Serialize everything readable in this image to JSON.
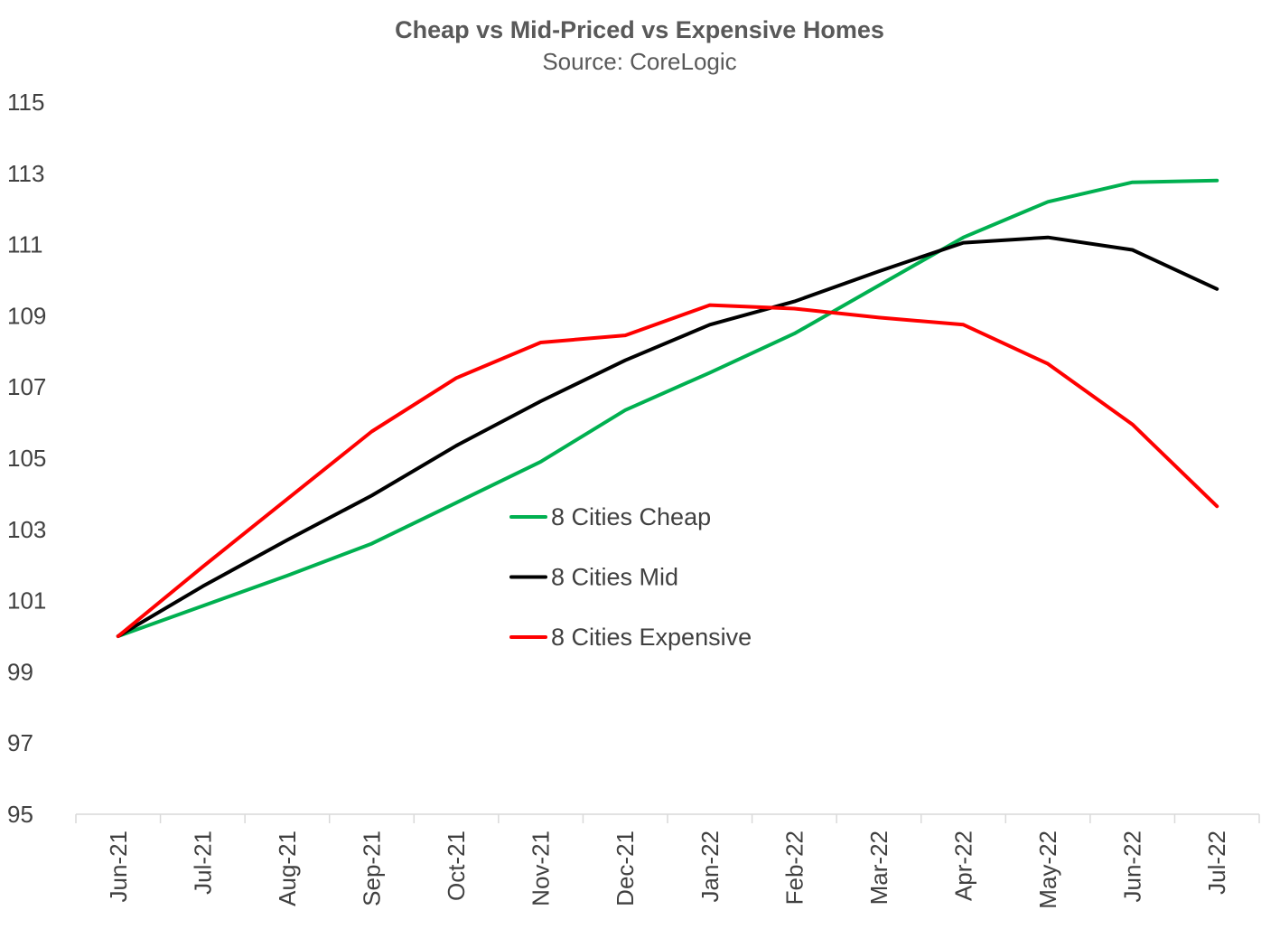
{
  "chart_data": {
    "type": "line",
    "title": "Cheap vs Mid-Priced vs Expensive Homes",
    "subtitle": "Source: CoreLogic",
    "xlabel": "",
    "ylabel": "",
    "ylim": [
      95,
      115
    ],
    "yticks": [
      95,
      97,
      99,
      101,
      103,
      105,
      107,
      109,
      111,
      113,
      115
    ],
    "categories": [
      "Jun-21",
      "Jul-21",
      "Aug-21",
      "Sep-21",
      "Oct-21",
      "Nov-21",
      "Dec-21",
      "Jan-22",
      "Feb-22",
      "Mar-22",
      "Apr-22",
      "May-22",
      "Jun-22",
      "Jul-22"
    ],
    "grid": false,
    "legend_position": "center",
    "series": [
      {
        "name": "8 Cities Cheap",
        "color": "#00b050",
        "values": [
          100.0,
          100.85,
          101.7,
          102.6,
          103.75,
          104.9,
          106.35,
          107.4,
          108.5,
          109.85,
          111.2,
          112.2,
          112.75,
          112.8
        ]
      },
      {
        "name": "8 Cities Mid",
        "color": "#000000",
        "values": [
          100.0,
          101.4,
          102.7,
          103.95,
          105.35,
          106.6,
          107.75,
          108.75,
          109.4,
          110.25,
          111.05,
          111.2,
          110.85,
          109.75
        ]
      },
      {
        "name": "8 Cities Expensive",
        "color": "#ff0000",
        "values": [
          100.0,
          101.95,
          103.85,
          105.75,
          107.25,
          108.25,
          108.45,
          109.3,
          109.2,
          108.95,
          108.75,
          107.65,
          105.95,
          103.65
        ]
      }
    ]
  }
}
